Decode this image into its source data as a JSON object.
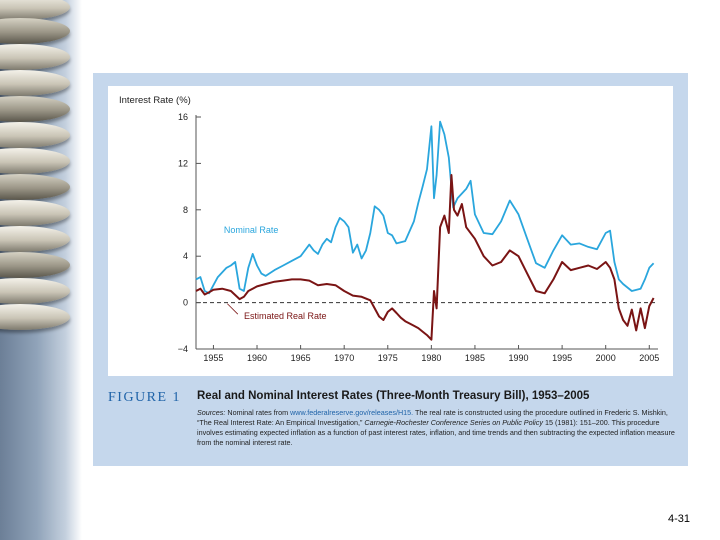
{
  "figure": {
    "label": "FIGURE 1",
    "title": "Real and Nominal Interest Rates (Three-Month Treasury Bill), 1953–2005",
    "sources_lead": "Sources:",
    "sources_a": "Nominal rates from",
    "sources_url": "www.federalreserve.gov/releases/H15.",
    "sources_b": "The real rate is constructed using the procedure outlined in Frederic S. Mishkin, “The Real Interest Rate: An Empirical Investigation,”",
    "sources_journal": "Carnegie-Rochester Conference Series on Public Policy",
    "sources_c": "15 (1981): 151–200. This procedure involves estimating expected inflation as a function of past interest rates, inflation, and time trends and then subtracting the expected inflation measure from the nominal interest rate."
  },
  "slide_number": "4-31",
  "colors": {
    "nominal": "#2aa6dd",
    "real": "#7a1414",
    "panel": "#c5d7ec",
    "figure_label": "#1f63a8"
  },
  "chart_data": {
    "type": "line",
    "title": "",
    "xlabel": "",
    "ylabel": "Interest Rate (%)",
    "xlim": [
      1953,
      2006
    ],
    "ylim": [
      -4,
      16
    ],
    "x_ticks": [
      1955,
      1960,
      1965,
      1970,
      1975,
      1980,
      1985,
      1990,
      1995,
      2000,
      2005
    ],
    "y_ticks": [
      -4,
      0,
      4,
      8,
      12,
      16
    ],
    "zero_reference_line": "dashed",
    "series": [
      {
        "name": "Nominal Rate",
        "color": "#2aa6dd",
        "x": [
          1953,
          1953.5,
          1954,
          1954.5,
          1955,
          1955.5,
          1956,
          1956.5,
          1957,
          1957.5,
          1958,
          1958.5,
          1959,
          1959.5,
          1960,
          1960.5,
          1961,
          1962,
          1963,
          1964,
          1965,
          1966,
          1966.5,
          1967,
          1967.5,
          1968,
          1968.5,
          1969,
          1969.5,
          1970,
          1970.5,
          1971,
          1971.5,
          1972,
          1972.5,
          1973,
          1973.5,
          1974,
          1974.5,
          1975,
          1975.5,
          1976,
          1977,
          1978,
          1978.5,
          1979,
          1979.5,
          1980,
          1980.3,
          1980.6,
          1981,
          1981.5,
          1982,
          1982.5,
          1983,
          1984,
          1984.5,
          1985,
          1986,
          1987,
          1988,
          1989,
          1990,
          1991,
          1992,
          1993,
          1994,
          1995,
          1996,
          1997,
          1998,
          1999,
          2000,
          2000.5,
          2001,
          2001.5,
          2002,
          2003,
          2004,
          2004.5,
          2005,
          2005.5
        ],
        "values": [
          2.0,
          2.2,
          1.0,
          0.8,
          1.5,
          2.2,
          2.6,
          3.0,
          3.2,
          3.5,
          1.2,
          1.0,
          3.0,
          4.2,
          3.2,
          2.5,
          2.3,
          2.8,
          3.2,
          3.6,
          4.0,
          5.0,
          4.5,
          4.2,
          5.0,
          5.5,
          5.2,
          6.5,
          7.3,
          7.0,
          6.5,
          4.3,
          5.0,
          3.8,
          4.5,
          6.0,
          8.3,
          8.0,
          7.5,
          6.0,
          5.8,
          5.1,
          5.3,
          7.0,
          8.6,
          10.0,
          11.5,
          15.2,
          9.0,
          11.0,
          15.6,
          14.5,
          12.5,
          8.2,
          9.0,
          9.8,
          10.5,
          7.6,
          6.0,
          5.9,
          7.0,
          8.8,
          7.6,
          5.5,
          3.4,
          3.0,
          4.5,
          5.8,
          5.0,
          5.1,
          4.8,
          4.6,
          6.0,
          6.2,
          3.5,
          2.0,
          1.6,
          1.0,
          1.2,
          2.0,
          3.0,
          3.4
        ]
      },
      {
        "name": "Estimated Real Rate",
        "color": "#7a1414",
        "x": [
          1953,
          1953.5,
          1954,
          1954.5,
          1955,
          1956,
          1957,
          1958,
          1958.5,
          1959,
          1960,
          1961,
          1962,
          1963,
          1964,
          1965,
          1966,
          1967,
          1968,
          1969,
          1970,
          1971,
          1972,
          1973,
          1973.5,
          1974,
          1974.5,
          1975,
          1975.5,
          1976,
          1976.5,
          1977,
          1977.5,
          1978,
          1978.5,
          1979,
          1979.5,
          1980,
          1980.3,
          1980.6,
          1981,
          1981.5,
          1982,
          1982.3,
          1982.6,
          1983,
          1983.5,
          1984,
          1985,
          1986,
          1987,
          1988,
          1989,
          1990,
          1991,
          1992,
          1993,
          1994,
          1995,
          1996,
          1997,
          1998,
          1999,
          2000,
          2000.5,
          2001,
          2001.5,
          2002,
          2002.5,
          2003,
          2003.5,
          2004,
          2004.5,
          2005,
          2005.5
        ],
        "values": [
          1.0,
          1.2,
          0.7,
          0.9,
          1.1,
          1.2,
          1.0,
          0.3,
          0.5,
          1.0,
          1.4,
          1.6,
          1.8,
          1.9,
          2.0,
          2.0,
          1.9,
          1.5,
          1.6,
          1.5,
          1.0,
          0.6,
          0.5,
          0.2,
          -0.5,
          -1.2,
          -1.5,
          -0.8,
          -0.5,
          -0.9,
          -1.3,
          -1.6,
          -1.8,
          -2.0,
          -2.2,
          -2.5,
          -2.8,
          -3.2,
          1.0,
          -0.5,
          6.5,
          7.5,
          6.0,
          11.0,
          8.0,
          7.5,
          8.5,
          6.5,
          5.5,
          4.0,
          3.2,
          3.5,
          4.5,
          4.0,
          2.5,
          1.0,
          0.8,
          2.0,
          3.5,
          2.8,
          3.0,
          3.2,
          2.9,
          3.5,
          3.0,
          2.0,
          -0.5,
          -1.5,
          -2.0,
          -0.6,
          -2.4,
          -0.5,
          -2.2,
          -0.3,
          0.4
        ]
      }
    ]
  }
}
